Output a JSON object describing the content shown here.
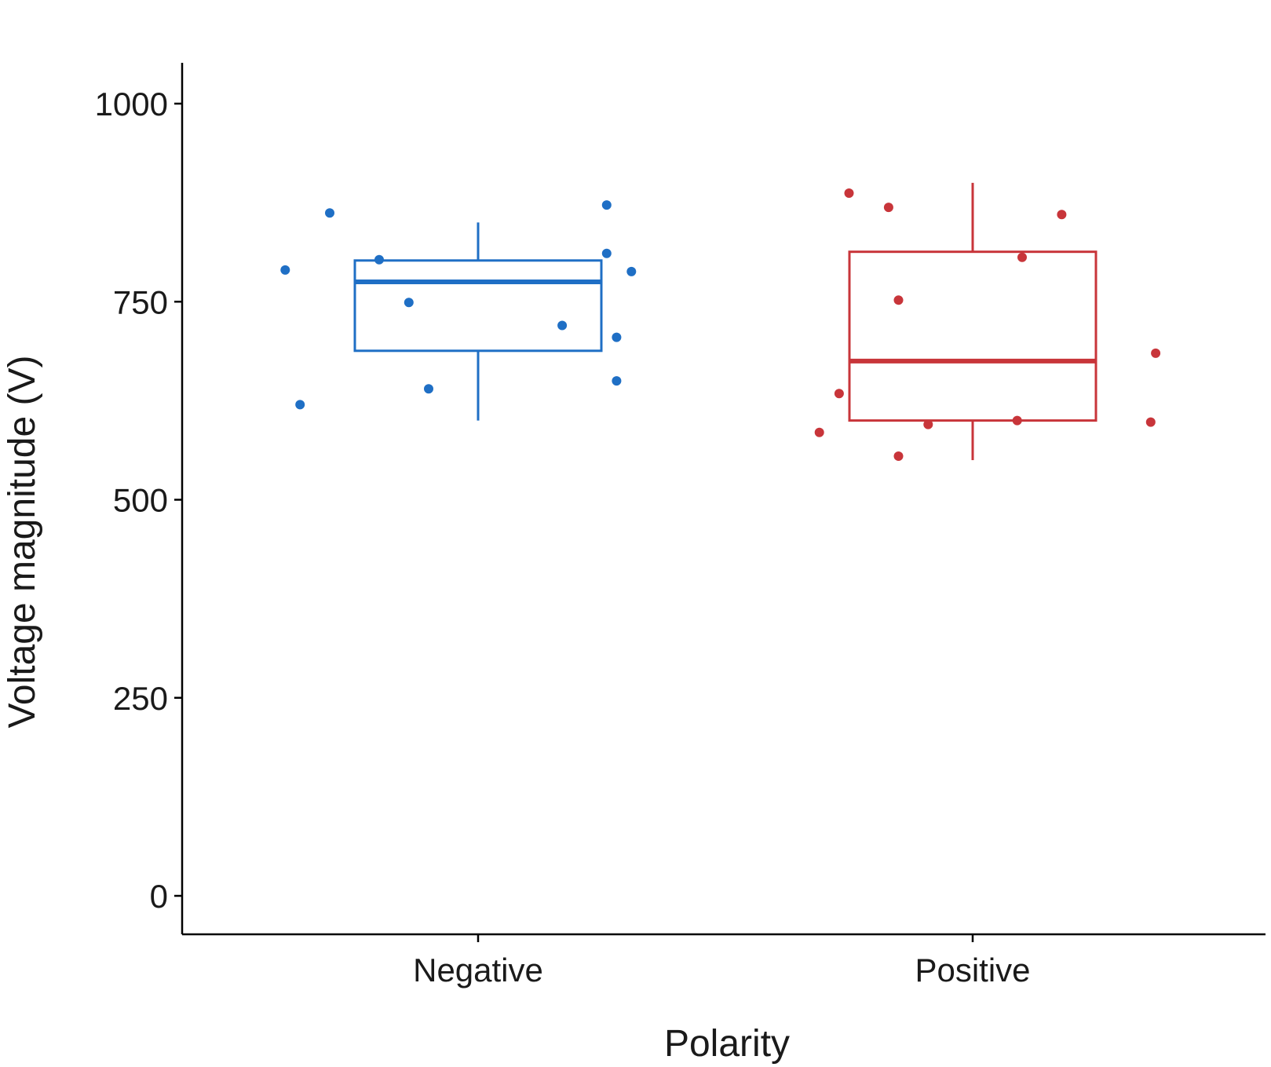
{
  "chart_data": {
    "type": "box",
    "title": "",
    "xlabel": "Polarity",
    "ylabel": "Voltage magnitude (V)",
    "ylim": [
      -50,
      1050
    ],
    "yticks": [
      0,
      250,
      500,
      750,
      1000
    ],
    "grid": false,
    "legend": "none",
    "categories": [
      "Negative",
      "Positive"
    ],
    "series": [
      {
        "category": "Negative",
        "color": "#1f6fc5",
        "box": {
          "min": 600,
          "q1": 688,
          "median": 775,
          "q3": 802,
          "max": 850
        },
        "points": [
          {
            "x": -0.39,
            "y": 790
          },
          {
            "x": -0.36,
            "y": 620
          },
          {
            "x": -0.3,
            "y": 862
          },
          {
            "x": -0.2,
            "y": 803
          },
          {
            "x": -0.14,
            "y": 749
          },
          {
            "x": -0.1,
            "y": 640
          },
          {
            "x": 0.17,
            "y": 720
          },
          {
            "x": 0.26,
            "y": 872
          },
          {
            "x": 0.26,
            "y": 811
          },
          {
            "x": 0.28,
            "y": 650
          },
          {
            "x": 0.28,
            "y": 705
          },
          {
            "x": 0.31,
            "y": 788
          }
        ]
      },
      {
        "category": "Positive",
        "color": "#c8353a",
        "box": {
          "min": 550,
          "q1": 600,
          "median": 675,
          "q3": 813,
          "max": 900
        },
        "points": [
          {
            "x": -0.31,
            "y": 585
          },
          {
            "x": -0.27,
            "y": 634
          },
          {
            "x": -0.25,
            "y": 887
          },
          {
            "x": -0.17,
            "y": 869
          },
          {
            "x": -0.15,
            "y": 555
          },
          {
            "x": -0.15,
            "y": 752
          },
          {
            "x": -0.09,
            "y": 595
          },
          {
            "x": 0.09,
            "y": 600
          },
          {
            "x": 0.1,
            "y": 806
          },
          {
            "x": 0.18,
            "y": 860
          },
          {
            "x": 0.36,
            "y": 598
          },
          {
            "x": 0.37,
            "y": 685
          }
        ]
      }
    ]
  }
}
